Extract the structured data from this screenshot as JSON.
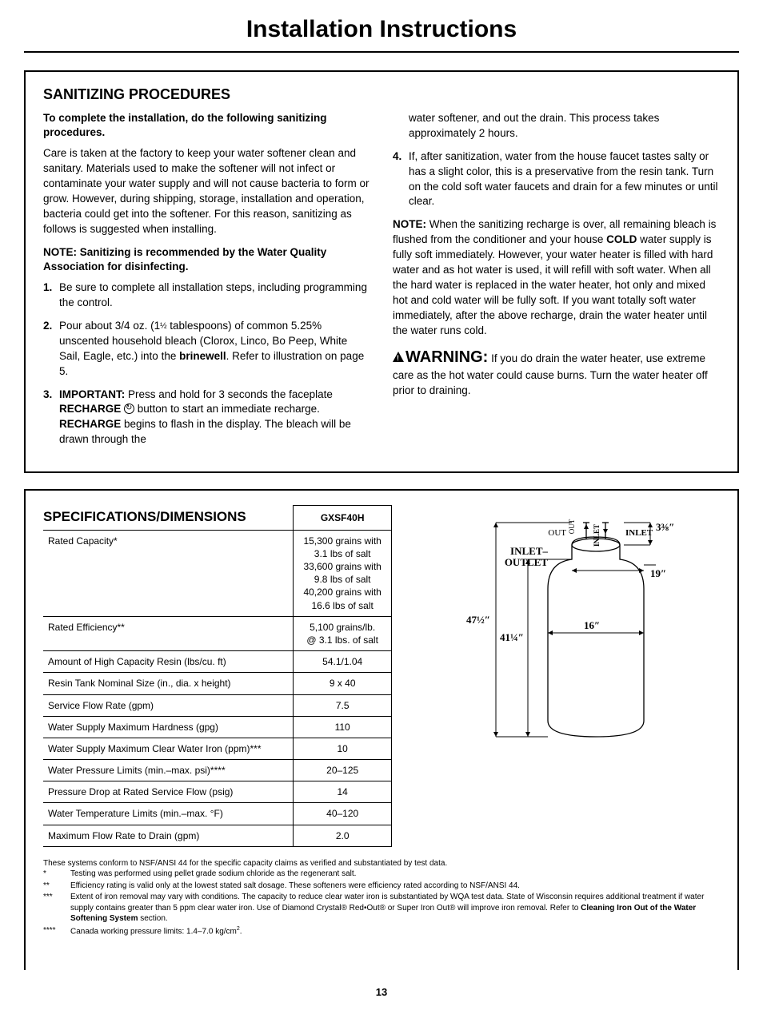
{
  "title": "Installation Instructions",
  "sanitizing": {
    "heading": "SANITIZING PROCEDURES",
    "intro_bold": "To complete the installation, do the following sanitizing procedures.",
    "intro_para": "Care is taken at the factory to keep your water softener clean and sanitary. Materials used to make the softener will not infect or contaminate your water supply and will not cause bacteria to form or grow. However, during shipping, storage, installation and operation, bacteria could get into the softener. For this reason, sanitizing as follows is suggested when installing.",
    "note_bold": "NOTE: Sanitizing is recommended by the Water Quality Association for disinfecting.",
    "step1": "Be sure to complete all installation steps, including programming the control.",
    "step2_a": "Pour about 3/4 oz. (1",
    "step2_frac": "½",
    "step2_b": " tablespoons) of common 5.25% unscented household bleach (Clorox, Linco, Bo Peep, White Sail, Eagle, etc.) into the ",
    "step2_brinewell": "brinewell",
    "step2_c": ". Refer to illustration on page 5.",
    "step3_imp": "IMPORTANT:",
    "step3_a": " Press and hold for 3 seconds the faceplate ",
    "step3_rech1": "RECHARGE",
    "step3_b": " button to start an immediate recharge. ",
    "step3_rech2": "RECHARGE",
    "step3_c": " begins to flash in the display. The bleach will be drawn through the",
    "step3_cont": "water softener, and out the drain. This process takes approximately 2 hours.",
    "step4": "If, after sanitization, water from the house faucet tastes salty or has a slight color, this is a preservative from the resin tank. Turn on the cold soft water faucets and drain for a few minutes or until clear.",
    "note2_label": "NOTE:",
    "note2_a": " When the sanitizing recharge is over, all remaining bleach is flushed from the conditioner and your house ",
    "note2_cold": "COLD",
    "note2_b": " water supply is fully soft immediately. However, your water heater is filled with hard water and as hot water is used, it will refill with soft water. When all the hard water is replaced in the water heater, hot only and mixed hot and cold water will be fully soft. If you want totally soft water immediately, after the above recharge, drain the water heater until the water runs cold.",
    "warn_label": "WARNING:",
    "warn_text": " If you do drain the water heater, use extreme care as the hot water could cause burns. Turn the water heater off prior to draining."
  },
  "specs": {
    "heading": "SPECIFICATIONS/DIMENSIONS",
    "model": "GXSF40H",
    "rows": [
      {
        "label": "Rated Capacity*",
        "val": "15,300 grains with\n3.1 lbs of salt\n33,600 grains with\n9.8 lbs of salt\n40,200 grains with\n16.6 lbs of salt"
      },
      {
        "label": "Rated Efficiency**",
        "val": "5,100 grains/lb.\n@ 3.1 lbs. of salt"
      },
      {
        "label": "Amount of High Capacity Resin (lbs/cu. ft)",
        "val": "54.1/1.04"
      },
      {
        "label": "Resin Tank Nominal Size (in., dia. x height)",
        "val": "9 x 40"
      },
      {
        "label": "Service Flow Rate (gpm)",
        "val": "7.5"
      },
      {
        "label": "Water Supply Maximum Hardness (gpg)",
        "val": "110"
      },
      {
        "label": "Water Supply Maximum Clear Water Iron (ppm)***",
        "val": "10"
      },
      {
        "label": "Water Pressure Limits (min.–max. psi)****",
        "val": "20–125"
      },
      {
        "label": "Pressure Drop at Rated Service Flow (psig)",
        "val": "14"
      },
      {
        "label": "Water Temperature Limits (min.–max. °F)",
        "val": "40–120"
      },
      {
        "label": "Maximum Flow Rate to Drain (gpm)",
        "val": "2.0"
      }
    ],
    "diagram": {
      "inlet_outlet": "INLET–\nOUTLET",
      "out": "OUT",
      "inlet": "INLET",
      "top_gap": "3⅜″",
      "width_top": "19″",
      "width_body": "16″",
      "height_total": "47½″",
      "height_inner": "41¼″"
    }
  },
  "footnotes": {
    "intro": "These systems conform to NSF/ANSI 44 for the specific capacity claims as verified and substantiated by test data.",
    "f1": "Testing was performed using pellet grade sodium chloride as the regenerant salt.",
    "f2": "Efficiency rating is valid only at the lowest stated salt dosage. These softeners were efficiency rated according to NSF/ANSI 44.",
    "f3_a": "Extent of iron removal may vary with conditions. The capacity to reduce clear water iron is substantiated by WQA test data. State of Wisconsin requires additional treatment if water supply contains greater than 5 ppm clear water iron. Use of Diamond Crystal® Red•Out® or Super Iron Out® will improve iron removal. Refer to ",
    "f3_b": "Cleaning Iron Out of the Water Softening System",
    "f3_c": " section.",
    "f4": "Canada working pressure limits: 1.4–7.0 kg/cm²."
  },
  "page_num": "13"
}
